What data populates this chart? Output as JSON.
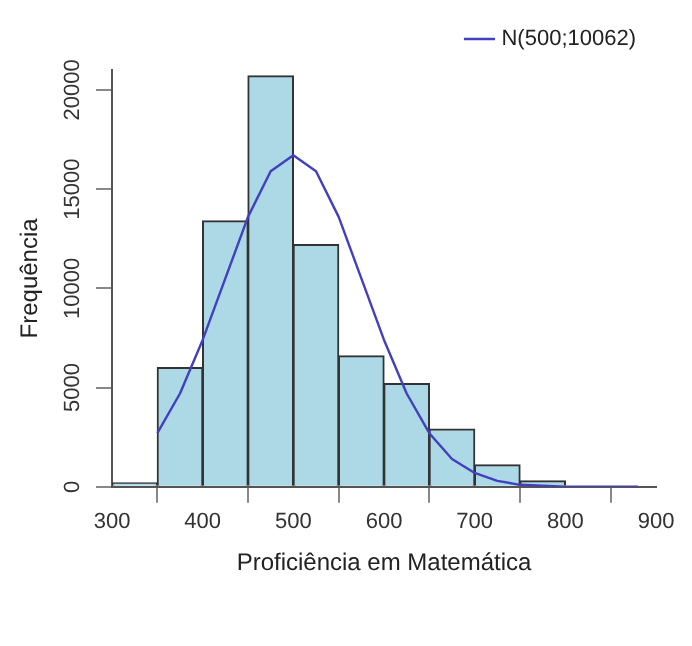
{
  "chart_data": {
    "type": "histogram",
    "xlabel": "Proficiência em Matemática",
    "ylabel": "Frequência",
    "bins": [
      300,
      350,
      400,
      450,
      500,
      550,
      600,
      650,
      700,
      750,
      800,
      850
    ],
    "values": [
      200,
      6000,
      13400,
      20700,
      12200,
      6600,
      5200,
      2900,
      1100,
      300,
      null
    ],
    "color": "#add8e6",
    "series": [
      {
        "type": "line",
        "name": "N(500;10062)",
        "color": "#4040c0",
        "x": [
          350,
          375,
          400,
          425,
          450,
          475,
          500,
          525,
          550,
          575,
          600,
          625,
          650,
          675,
          700,
          725,
          750,
          800,
          850,
          880
        ],
        "values": [
          2700,
          4700,
          7400,
          10500,
          13600,
          15900,
          16700,
          15900,
          13600,
          10500,
          7400,
          4700,
          2700,
          1400,
          700,
          300,
          100,
          0,
          0,
          0
        ]
      }
    ],
    "xlim": [
      300,
      900
    ],
    "ylim": [
      0,
      21000
    ],
    "xticks": [
      300,
      400,
      500,
      600,
      700,
      800,
      900
    ],
    "yticks": [
      0,
      5000,
      10000,
      15000,
      20000
    ],
    "legend": "top right",
    "marker": "none",
    "grid": false
  }
}
